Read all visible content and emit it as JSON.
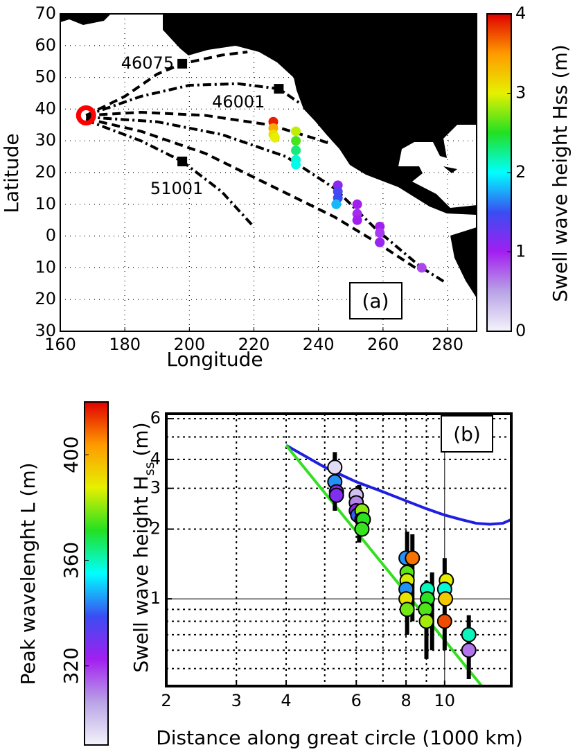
{
  "chart_data": [
    {
      "type": "map",
      "xlabel": "Longitude",
      "ylabel": "Latitude",
      "xlim": [
        160,
        289
      ],
      "ylim": [
        -30,
        70
      ],
      "xticks": [
        160,
        180,
        200,
        220,
        240,
        260,
        280
      ],
      "yticks": [
        70,
        60,
        50,
        40,
        30,
        20,
        10,
        0,
        {
          "value": -10,
          "label": "10"
        },
        {
          "value": -20,
          "label": "20"
        },
        {
          "value": -30,
          "label": "30"
        }
      ],
      "grid": true,
      "source": {
        "x": 168,
        "y": 38,
        "color": "#ff0000"
      },
      "tracks": [
        {
          "style": "dash",
          "x": [
            168,
            180,
            190,
            197.8,
            210,
            218
          ],
          "y": [
            38,
            44,
            51,
            54.3,
            57,
            58
          ]
        },
        {
          "style": "dashdot",
          "x": [
            168,
            185,
            200,
            215,
            227.7,
            234
          ],
          "y": [
            38,
            44,
            47.5,
            48,
            46.4,
            42
          ]
        },
        {
          "style": "dash",
          "x": [
            168,
            185,
            205,
            225,
            238,
            244
          ],
          "y": [
            38,
            39,
            38,
            35,
            31,
            29
          ]
        },
        {
          "style": "dashdot",
          "x": [
            168,
            190,
            210,
            230,
            245,
            258,
            272,
            279.6
          ],
          "y": [
            37.5,
            36,
            32,
            25,
            15,
            2,
            -10,
            -14.8
          ]
        },
        {
          "style": "dash",
          "x": [
            168,
            185,
            205,
            225,
            245,
            258,
            270
          ],
          "y": [
            37,
            33,
            26,
            16,
            6,
            -2,
            -10
          ]
        },
        {
          "style": "dashdot",
          "x": [
            168,
            185,
            197.8,
            210,
            219.5
          ],
          "y": [
            36.5,
            30,
            23.5,
            14,
            3.4
          ]
        }
      ],
      "buoys": [
        {
          "label": "46075",
          "x": 197.8,
          "y": 54.3
        },
        {
          "label": "46001",
          "x": 227.7,
          "y": 46.4
        },
        {
          "label": "51001",
          "x": 197.8,
          "y": 23.5
        }
      ],
      "points": {
        "x": [
          226,
          226,
          226,
          226.5,
          233,
          233,
          233,
          233,
          233,
          246,
          246,
          246,
          245.5,
          252,
          252,
          252,
          259,
          259,
          259,
          272
        ],
        "y": [
          36,
          34,
          32,
          31,
          33,
          30,
          27,
          24,
          22.5,
          16,
          14,
          12,
          10,
          10,
          7,
          5,
          3,
          1,
          -2,
          -10
        ],
        "values": [
          3.9,
          3.4,
          3.1,
          3.0,
          2.9,
          2.6,
          2.3,
          2.1,
          2.05,
          1.1,
          1.4,
          1.5,
          1.8,
          1.0,
          0.95,
          1.0,
          1.0,
          0.9,
          1.05,
          0.85
        ]
      },
      "colorbar": {
        "label": "Swell wave height Hss (m)",
        "lim": [
          0,
          4
        ],
        "ticks": [
          0,
          1,
          2,
          3,
          4
        ]
      },
      "colormap": [
        "#f4f4fa",
        "#b9a3e6",
        "#a21ff0",
        "#3a4df2",
        "#00ffff",
        "#22e022",
        "#e6f000",
        "#ff9a00",
        "#e00000"
      ],
      "annotation": "(a)"
    },
    {
      "type": "scatter",
      "xlabel": "Distance along great circle (1000 km)",
      "ylabel": [
        "Swell wave height H",
        "ss",
        "(m)"
      ],
      "xlog": true,
      "ylog": true,
      "xlim": [
        2,
        14.7
      ],
      "ylim": [
        0.42,
        6.3
      ],
      "xticks": [
        2,
        3,
        4,
        6,
        8,
        10
      ],
      "yticks": [
        1,
        2,
        3,
        4,
        6
      ],
      "xgrid": [
        3,
        4,
        5,
        6,
        7,
        8,
        9,
        10
      ],
      "ygrid": [
        0.5,
        0.6,
        0.7,
        0.8,
        0.9,
        1,
        2,
        3,
        4,
        5,
        6
      ],
      "points": {
        "x": [
          5.3,
          5.3,
          5.35,
          5.35,
          6.0,
          6.0,
          6.0,
          6.05,
          6.2,
          6.2,
          6.25,
          6.2,
          8.0,
          8.3,
          8.05,
          8.05,
          8.0,
          8.0,
          8.05,
          9.05,
          9.05,
          8.95,
          9.0,
          10.1,
          10.0,
          10.05,
          10.0,
          11.5,
          11.5
        ],
        "values": [
          3.7,
          3.2,
          2.9,
          2.8,
          2.8,
          2.6,
          2.4,
          2.3,
          2.4,
          2.2,
          2.2,
          2.0,
          1.5,
          1.5,
          1.3,
          1.2,
          1.1,
          1.0,
          0.9,
          1.1,
          1.0,
          0.9,
          0.8,
          1.2,
          1.1,
          1.0,
          0.8,
          0.7,
          0.6
        ],
        "colors": [
          295,
          345,
          325,
          328,
          300,
          310,
          325,
          340,
          380,
          375,
          372,
          373,
          345,
          408,
          376,
          386,
          345,
          390,
          378,
          360,
          372,
          375,
          382,
          388,
          358,
          395,
          412,
          360,
          312
        ]
      },
      "error_bars": {
        "x": [
          5.3,
          6.1,
          8.05,
          8.3,
          9.0,
          9.3,
          10.0,
          11.5
        ],
        "low": [
          2.4,
          1.75,
          0.7,
          0.8,
          0.55,
          0.6,
          0.6,
          0.45
        ],
        "high": [
          4.3,
          3.1,
          1.95,
          1.9,
          1.2,
          1.3,
          1.5,
          0.85
        ]
      },
      "lines": [
        {
          "color": "#1f1fe0",
          "x": [
            4,
            5,
            6,
            7,
            8,
            9,
            10,
            11,
            12,
            13,
            14,
            14.7
          ],
          "values": [
            4.6,
            3.7,
            3.2,
            2.9,
            2.65,
            2.45,
            2.3,
            2.2,
            2.12,
            2.1,
            2.12,
            2.2
          ]
        },
        {
          "color": "#33e020",
          "x": [
            4,
            12.4
          ],
          "values": [
            4.6,
            0.42
          ]
        }
      ],
      "colorbar": {
        "label": "Peak wavelenght L (m)",
        "lim": [
          290,
          420
        ],
        "ticks": [
          320,
          360,
          400
        ]
      },
      "colormap": [
        "#f4f4fa",
        "#b9a3e6",
        "#a21ff0",
        "#3a4df2",
        "#00ffff",
        "#22e022",
        "#e6f000",
        "#ff9a00",
        "#e00000"
      ],
      "annotation": "(b)"
    }
  ]
}
